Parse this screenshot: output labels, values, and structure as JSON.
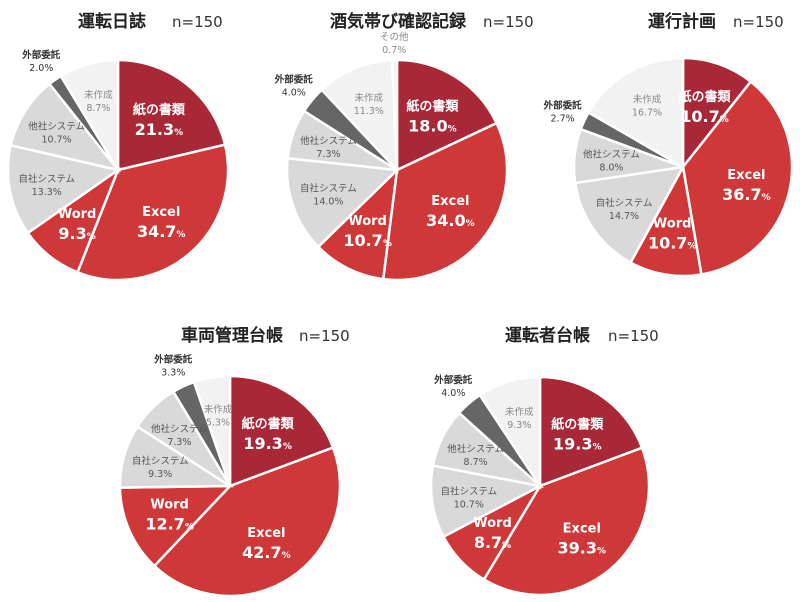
{
  "chart_data": [
    {
      "type": "pie",
      "title": "運転日誌",
      "n_label": "n=150",
      "slices": [
        {
          "label": "紙の書類",
          "value": 21.3,
          "value_text": "21.3",
          "color": "#a82838"
        },
        {
          "label": "Excel",
          "value": 34.7,
          "value_text": "34.7",
          "color": "#cf3838"
        },
        {
          "label": "Word",
          "value": 9.3,
          "value_text": "9.3",
          "color": "#cf3838"
        },
        {
          "label": "自社システム",
          "value": 13.3,
          "value_text": "13.3%",
          "color": "#d9d9d9"
        },
        {
          "label": "他社システム",
          "value": 10.7,
          "value_text": "10.7%",
          "color": "#d9d9d9"
        },
        {
          "label": "外部委託",
          "value": 2.0,
          "value_text": "2.0%",
          "color": "#666666"
        },
        {
          "label": "未作成",
          "value": 8.7,
          "value_text": "8.7%",
          "color": "#f2f2f2"
        }
      ]
    },
    {
      "type": "pie",
      "title": "酒気帯び確認記録",
      "n_label": "n=150",
      "slices": [
        {
          "label": "紙の書類",
          "value": 18.0,
          "value_text": "18.0",
          "color": "#a82838"
        },
        {
          "label": "Excel",
          "value": 34.0,
          "value_text": "34.0",
          "color": "#cf3838"
        },
        {
          "label": "Word",
          "value": 10.7,
          "value_text": "10.7",
          "color": "#cf3838"
        },
        {
          "label": "自社システム",
          "value": 14.0,
          "value_text": "14.0%",
          "color": "#d9d9d9"
        },
        {
          "label": "他社システム",
          "value": 7.3,
          "value_text": "7.3%",
          "color": "#d9d9d9"
        },
        {
          "label": "外部委託",
          "value": 4.0,
          "value_text": "4.0%",
          "color": "#666666"
        },
        {
          "label": "未作成",
          "value": 11.3,
          "value_text": "11.3%",
          "color": "#f2f2f2"
        },
        {
          "label": "その他",
          "value": 0.7,
          "value_text": "0.7%",
          "color": "#f2f2f2"
        }
      ]
    },
    {
      "type": "pie",
      "title": "運行計画",
      "n_label": "n=150",
      "slices": [
        {
          "label": "紙の書類",
          "value": 10.7,
          "value_text": "10.7",
          "color": "#a82838"
        },
        {
          "label": "Excel",
          "value": 36.7,
          "value_text": "36.7",
          "color": "#cf3838"
        },
        {
          "label": "Word",
          "value": 10.7,
          "value_text": "10.7",
          "color": "#cf3838"
        },
        {
          "label": "自社システム",
          "value": 14.7,
          "value_text": "14.7%",
          "color": "#d9d9d9"
        },
        {
          "label": "他社システム",
          "value": 8.0,
          "value_text": "8.0%",
          "color": "#d9d9d9"
        },
        {
          "label": "外部委託",
          "value": 2.7,
          "value_text": "2.7%",
          "color": "#666666"
        },
        {
          "label": "未作成",
          "value": 16.7,
          "value_text": "16.7%",
          "color": "#f2f2f2"
        }
      ]
    },
    {
      "type": "pie",
      "title": "車両管理台帳",
      "n_label": "n=150",
      "slices": [
        {
          "label": "紙の書類",
          "value": 19.3,
          "value_text": "19.3",
          "color": "#a82838"
        },
        {
          "label": "Excel",
          "value": 42.7,
          "value_text": "42.7",
          "color": "#cf3838"
        },
        {
          "label": "Word",
          "value": 12.7,
          "value_text": "12.7",
          "color": "#cf3838"
        },
        {
          "label": "自社システム",
          "value": 9.3,
          "value_text": "9.3%",
          "color": "#d9d9d9"
        },
        {
          "label": "他社システム",
          "value": 7.3,
          "value_text": "7.3%",
          "color": "#d9d9d9"
        },
        {
          "label": "外部委託",
          "value": 3.3,
          "value_text": "3.3%",
          "color": "#666666"
        },
        {
          "label": "未作成",
          "value": 5.3,
          "value_text": "5.3%",
          "color": "#f2f2f2"
        }
      ]
    },
    {
      "type": "pie",
      "title": "運転者台帳",
      "n_label": "n=150",
      "slices": [
        {
          "label": "紙の書類",
          "value": 19.3,
          "value_text": "19.3",
          "color": "#a82838"
        },
        {
          "label": "Excel",
          "value": 39.3,
          "value_text": "39.3",
          "color": "#cf3838"
        },
        {
          "label": "Word",
          "value": 8.7,
          "value_text": "8.7",
          "color": "#cf3838"
        },
        {
          "label": "自社システム",
          "value": 10.7,
          "value_text": "10.7%",
          "color": "#d9d9d9"
        },
        {
          "label": "他社システム",
          "value": 8.7,
          "value_text": "8.7%",
          "color": "#d9d9d9"
        },
        {
          "label": "外部委託",
          "value": 4.0,
          "value_text": "4.0%",
          "color": "#666666"
        },
        {
          "label": "未作成",
          "value": 9.3,
          "value_text": "9.3%",
          "color": "#f2f2f2"
        }
      ]
    }
  ],
  "pct_suffix": "%"
}
